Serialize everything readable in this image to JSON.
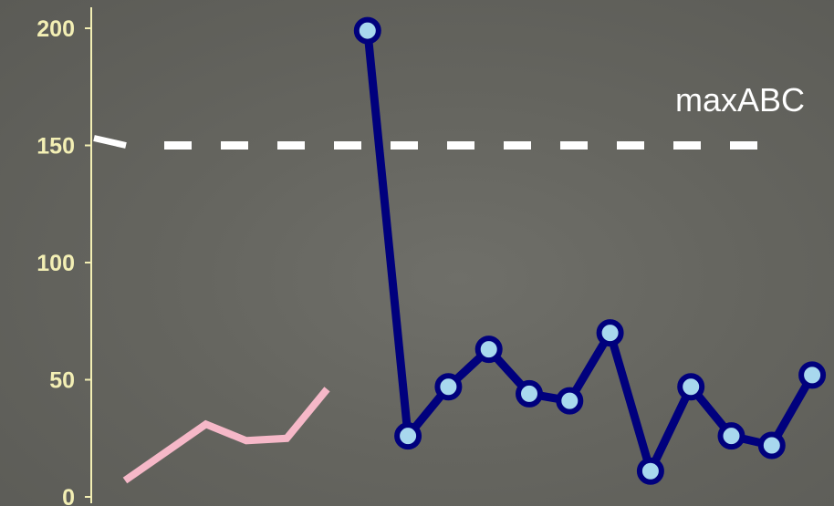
{
  "chart_data": {
    "type": "line",
    "ylim": [
      0,
      200
    ],
    "y_ticks": [
      0,
      50,
      100,
      150,
      200
    ],
    "y_tick_labels": [
      "0",
      "50",
      "100",
      "150",
      "200"
    ],
    "grid": false,
    "reference_line": {
      "label": "maxABC",
      "value": 150,
      "style": "dashed",
      "color": "#ffffff"
    },
    "series": [
      {
        "color": "#f6b8c8",
        "markers": false,
        "points": [
          [
            1,
            7
          ],
          [
            2,
            19
          ],
          [
            3,
            31
          ],
          [
            4,
            24
          ],
          [
            5,
            25
          ],
          [
            6,
            46
          ]
        ]
      },
      {
        "color": "#00007d",
        "marker_fill": "#a8d8ee",
        "markers": true,
        "points": [
          [
            7,
            199
          ],
          [
            8,
            26
          ],
          [
            9,
            47
          ],
          [
            10,
            63
          ],
          [
            11,
            44
          ],
          [
            12,
            41
          ],
          [
            13,
            70
          ],
          [
            14,
            11
          ],
          [
            15,
            47
          ],
          [
            16,
            26
          ],
          [
            17,
            22
          ],
          [
            18,
            52
          ]
        ]
      }
    ]
  }
}
